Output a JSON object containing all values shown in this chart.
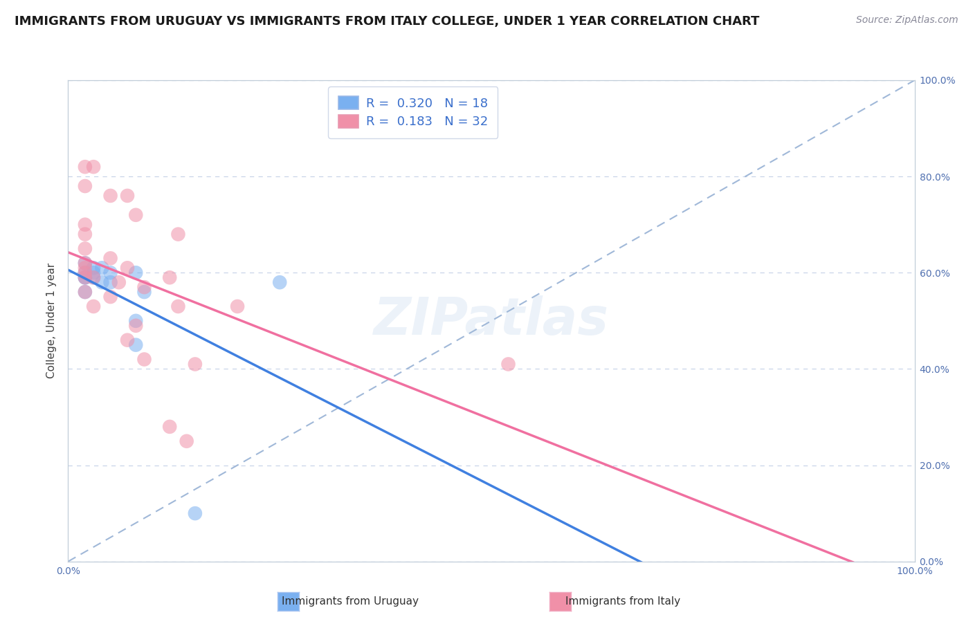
{
  "title": "IMMIGRANTS FROM URUGUAY VS IMMIGRANTS FROM ITALY COLLEGE, UNDER 1 YEAR CORRELATION CHART",
  "source": "Source: ZipAtlas.com",
  "ylabel": "College, Under 1 year",
  "xlim": [
    0.0,
    1.0
  ],
  "ylim": [
    0.0,
    1.0
  ],
  "legend_entries": [
    {
      "label": "R =  0.320   N = 18",
      "color": "#a8c8f8",
      "series": "Uruguay"
    },
    {
      "label": "R =  0.183   N = 32",
      "color": "#f8b8c8",
      "series": "Italy"
    }
  ],
  "R_color": "#3a6fcc",
  "uruguay_color": "#7ab0f0",
  "italy_color": "#f090a8",
  "uruguay_line_color": "#4080e0",
  "italy_line_color": "#f070a0",
  "diagonal_color": "#a0b8d8",
  "background_color": "#ffffff",
  "grid_color": "#c8d4e8",
  "ytick_positions": [
    0.0,
    0.2,
    0.4,
    0.6,
    0.8,
    1.0
  ],
  "right_ytick_labels": [
    "0.0%",
    "20.0%",
    "40.0%",
    "60.0%",
    "80.0%",
    "100.0%"
  ],
  "uruguay_points": [
    [
      0.02,
      0.62
    ],
    [
      0.02,
      0.6
    ],
    [
      0.02,
      0.59
    ],
    [
      0.02,
      0.59
    ],
    [
      0.03,
      0.59
    ],
    [
      0.03,
      0.6
    ],
    [
      0.03,
      0.61
    ],
    [
      0.04,
      0.61
    ],
    [
      0.04,
      0.58
    ],
    [
      0.05,
      0.6
    ],
    [
      0.05,
      0.58
    ],
    [
      0.08,
      0.6
    ],
    [
      0.02,
      0.56
    ],
    [
      0.09,
      0.56
    ],
    [
      0.25,
      0.58
    ],
    [
      0.08,
      0.5
    ],
    [
      0.08,
      0.45
    ],
    [
      0.15,
      0.1
    ]
  ],
  "italy_points": [
    [
      0.02,
      0.82
    ],
    [
      0.03,
      0.82
    ],
    [
      0.02,
      0.78
    ],
    [
      0.05,
      0.76
    ],
    [
      0.07,
      0.76
    ],
    [
      0.08,
      0.72
    ],
    [
      0.02,
      0.7
    ],
    [
      0.02,
      0.68
    ],
    [
      0.13,
      0.68
    ],
    [
      0.02,
      0.65
    ],
    [
      0.05,
      0.63
    ],
    [
      0.02,
      0.62
    ],
    [
      0.02,
      0.61
    ],
    [
      0.07,
      0.61
    ],
    [
      0.02,
      0.6
    ],
    [
      0.02,
      0.59
    ],
    [
      0.03,
      0.59
    ],
    [
      0.12,
      0.59
    ],
    [
      0.06,
      0.58
    ],
    [
      0.09,
      0.57
    ],
    [
      0.02,
      0.56
    ],
    [
      0.05,
      0.55
    ],
    [
      0.03,
      0.53
    ],
    [
      0.13,
      0.53
    ],
    [
      0.2,
      0.53
    ],
    [
      0.08,
      0.49
    ],
    [
      0.07,
      0.46
    ],
    [
      0.09,
      0.42
    ],
    [
      0.15,
      0.41
    ],
    [
      0.12,
      0.28
    ],
    [
      0.14,
      0.25
    ],
    [
      0.52,
      0.41
    ]
  ],
  "title_fontsize": 13,
  "axis_label_fontsize": 11,
  "tick_fontsize": 10,
  "legend_fontsize": 13,
  "source_fontsize": 10
}
